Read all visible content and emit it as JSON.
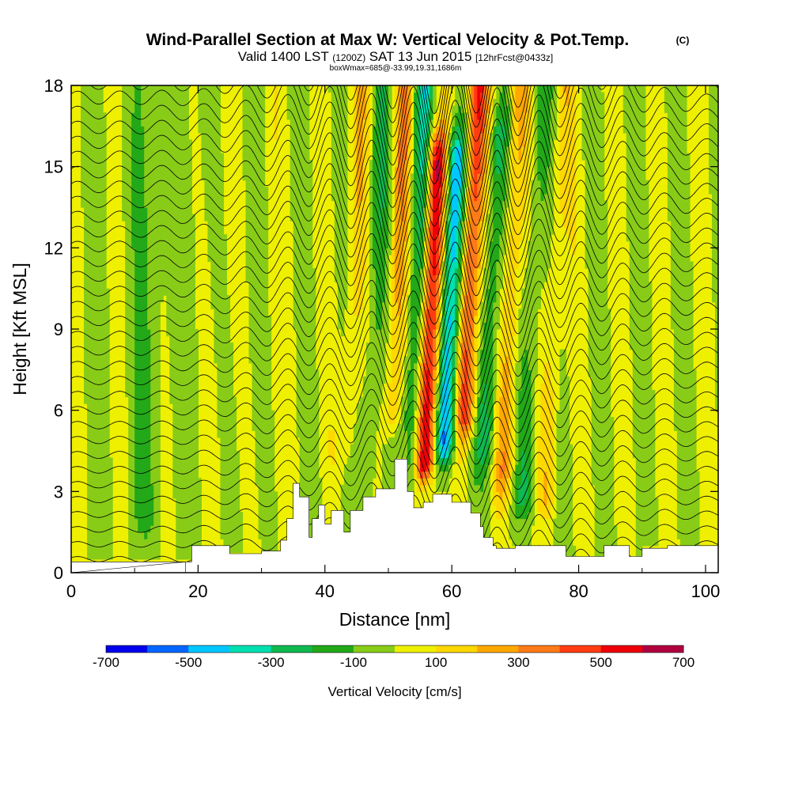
{
  "chart_data": {
    "type": "heatmap",
    "title": "Wind-Parallel Section at Max W: Vertical Velocity & Pot.Temp.",
    "title_mark": "(C)",
    "subtitle": {
      "valid_prefix": "Valid 1400 LST",
      "utc": "(1200Z)",
      "date": "SAT 13 Jun 2015",
      "forecast": "[12hrFcst@0433z]"
    },
    "subtitle2": "boxWmax=685@-33.99,19.31,1686m",
    "xlabel": "Distance [nm]",
    "ylabel": "Height [Kft MSL]",
    "xlim": [
      0,
      102
    ],
    "ylim": [
      0,
      18
    ],
    "xticks": [
      0,
      20,
      40,
      60,
      80,
      100
    ],
    "yticks": [
      0,
      3,
      6,
      9,
      12,
      15,
      18
    ],
    "colorbar": {
      "title": "Vertical Velocity [cm/s]",
      "levels": [
        -700,
        -600,
        -500,
        -400,
        -300,
        -200,
        -100,
        0,
        100,
        200,
        300,
        400,
        500,
        600,
        700
      ],
      "labels": [
        "-700",
        "-500",
        "-300",
        "-100",
        "100",
        "300",
        "500",
        "700"
      ],
      "colors": [
        "#0000ee",
        "#0066ff",
        "#00c8ff",
        "#00e0b0",
        "#10b850",
        "#22a818",
        "#88cc18",
        "#eef000",
        "#ffd800",
        "#ffa800",
        "#ff7a18",
        "#ff3c10",
        "#ee0008",
        "#b00040"
      ]
    },
    "fields": {
      "vertical_velocity": {
        "units": "cm/s",
        "max": 685,
        "features": [
          {
            "center_nm": 56.5,
            "height_kft": [
              4,
              15
            ],
            "value": 650
          },
          {
            "center_nm": 59.5,
            "height_kft": [
              5,
              15
            ],
            "value": -550
          },
          {
            "center_nm": 62.5,
            "height_kft": [
              6,
              18
            ],
            "value": 500
          },
          {
            "center_nm": 54.0,
            "height_kft": [
              3,
              18
            ],
            "value": -300
          },
          {
            "center_nm": 66.0,
            "height_kft": [
              5,
              16
            ],
            "value": -250
          },
          {
            "center_nm": 51.0,
            "height_kft": [
              6,
              18
            ],
            "value": 250
          },
          {
            "center_nm": 69.0,
            "height_kft": [
              4,
              18
            ],
            "value": 250
          },
          {
            "center_nm": 47.5,
            "height_kft": [
              3,
              18
            ],
            "value": -150
          },
          {
            "center_nm": 72.5,
            "height_kft": [
              3,
              18
            ],
            "value": -150
          },
          {
            "center_nm": 44.0,
            "height_kft": [
              5,
              18
            ],
            "value": 150
          },
          {
            "center_nm": 76.0,
            "height_kft": [
              3,
              18
            ],
            "value": 150
          }
        ]
      },
      "potential_temperature": {
        "units": "C",
        "contour_interval": 1
      }
    },
    "terrain_kft": {
      "x": [
        18,
        19,
        19,
        25,
        25,
        30,
        30,
        33,
        33,
        34,
        34,
        35,
        35,
        36,
        36,
        37.5,
        37.5,
        38,
        38,
        39,
        39,
        40,
        40,
        41,
        41,
        43,
        43,
        44,
        44,
        46,
        46,
        48,
        48,
        51,
        51,
        53,
        53,
        54,
        54,
        55.5,
        55.5,
        57,
        57,
        60,
        60,
        63,
        63,
        64.5,
        64.5,
        65,
        65,
        66.5,
        66.5,
        67,
        67,
        68,
        68,
        70,
        70,
        78,
        78,
        84,
        84,
        88,
        88,
        90,
        90,
        94,
        94,
        102
      ],
      "h": [
        0.4,
        0.4,
        1.0,
        1.0,
        0.7,
        0.7,
        0.8,
        0.8,
        1.2,
        1.2,
        2.0,
        2.0,
        3.3,
        3.3,
        2.8,
        2.8,
        1.3,
        1.3,
        2.0,
        2.0,
        2.5,
        2.5,
        1.8,
        1.8,
        2.3,
        2.3,
        1.5,
        1.5,
        2.3,
        2.3,
        2.8,
        2.8,
        3.1,
        3.1,
        4.2,
        4.2,
        3.0,
        3.0,
        2.4,
        2.4,
        2.6,
        2.6,
        2.9,
        2.9,
        2.6,
        2.6,
        2.2,
        2.2,
        1.7,
        1.7,
        1.3,
        1.3,
        1.0,
        1.0,
        0.9,
        0.9,
        0.9,
        0.9,
        1.0,
        1.0,
        0.6,
        0.6,
        1.0,
        1.0,
        0.6,
        0.6,
        0.9,
        0.9,
        1.0,
        1.0
      ]
    }
  }
}
